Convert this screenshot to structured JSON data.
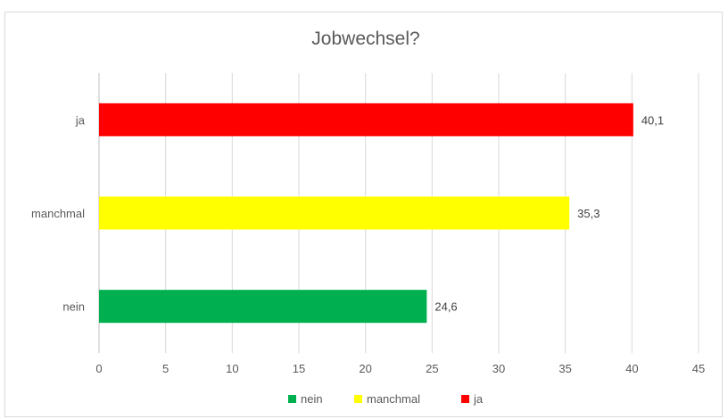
{
  "chart_data": {
    "type": "bar",
    "orientation": "horizontal",
    "title": "Jobwechsel?",
    "categories": [
      "nein",
      "manchmal",
      "ja"
    ],
    "values": [
      24.6,
      35.3,
      40.1
    ],
    "value_labels": [
      "24,6",
      "35,3",
      "40,1"
    ],
    "colors": [
      "#00b050",
      "#ffff00",
      "#ff0000"
    ],
    "xlim": [
      0,
      45
    ],
    "xticks": [
      0,
      5,
      10,
      15,
      20,
      25,
      30,
      35,
      40,
      45
    ],
    "xtick_labels": [
      "0",
      "5",
      "10",
      "15",
      "20",
      "25",
      "30",
      "35",
      "40",
      "45"
    ],
    "grid": true,
    "legend": {
      "placement": "bottom",
      "entries": [
        {
          "label": "nein",
          "color": "#00b050"
        },
        {
          "label": "manchmal",
          "color": "#ffff00"
        },
        {
          "label": "ja",
          "color": "#ff0000"
        }
      ]
    }
  }
}
